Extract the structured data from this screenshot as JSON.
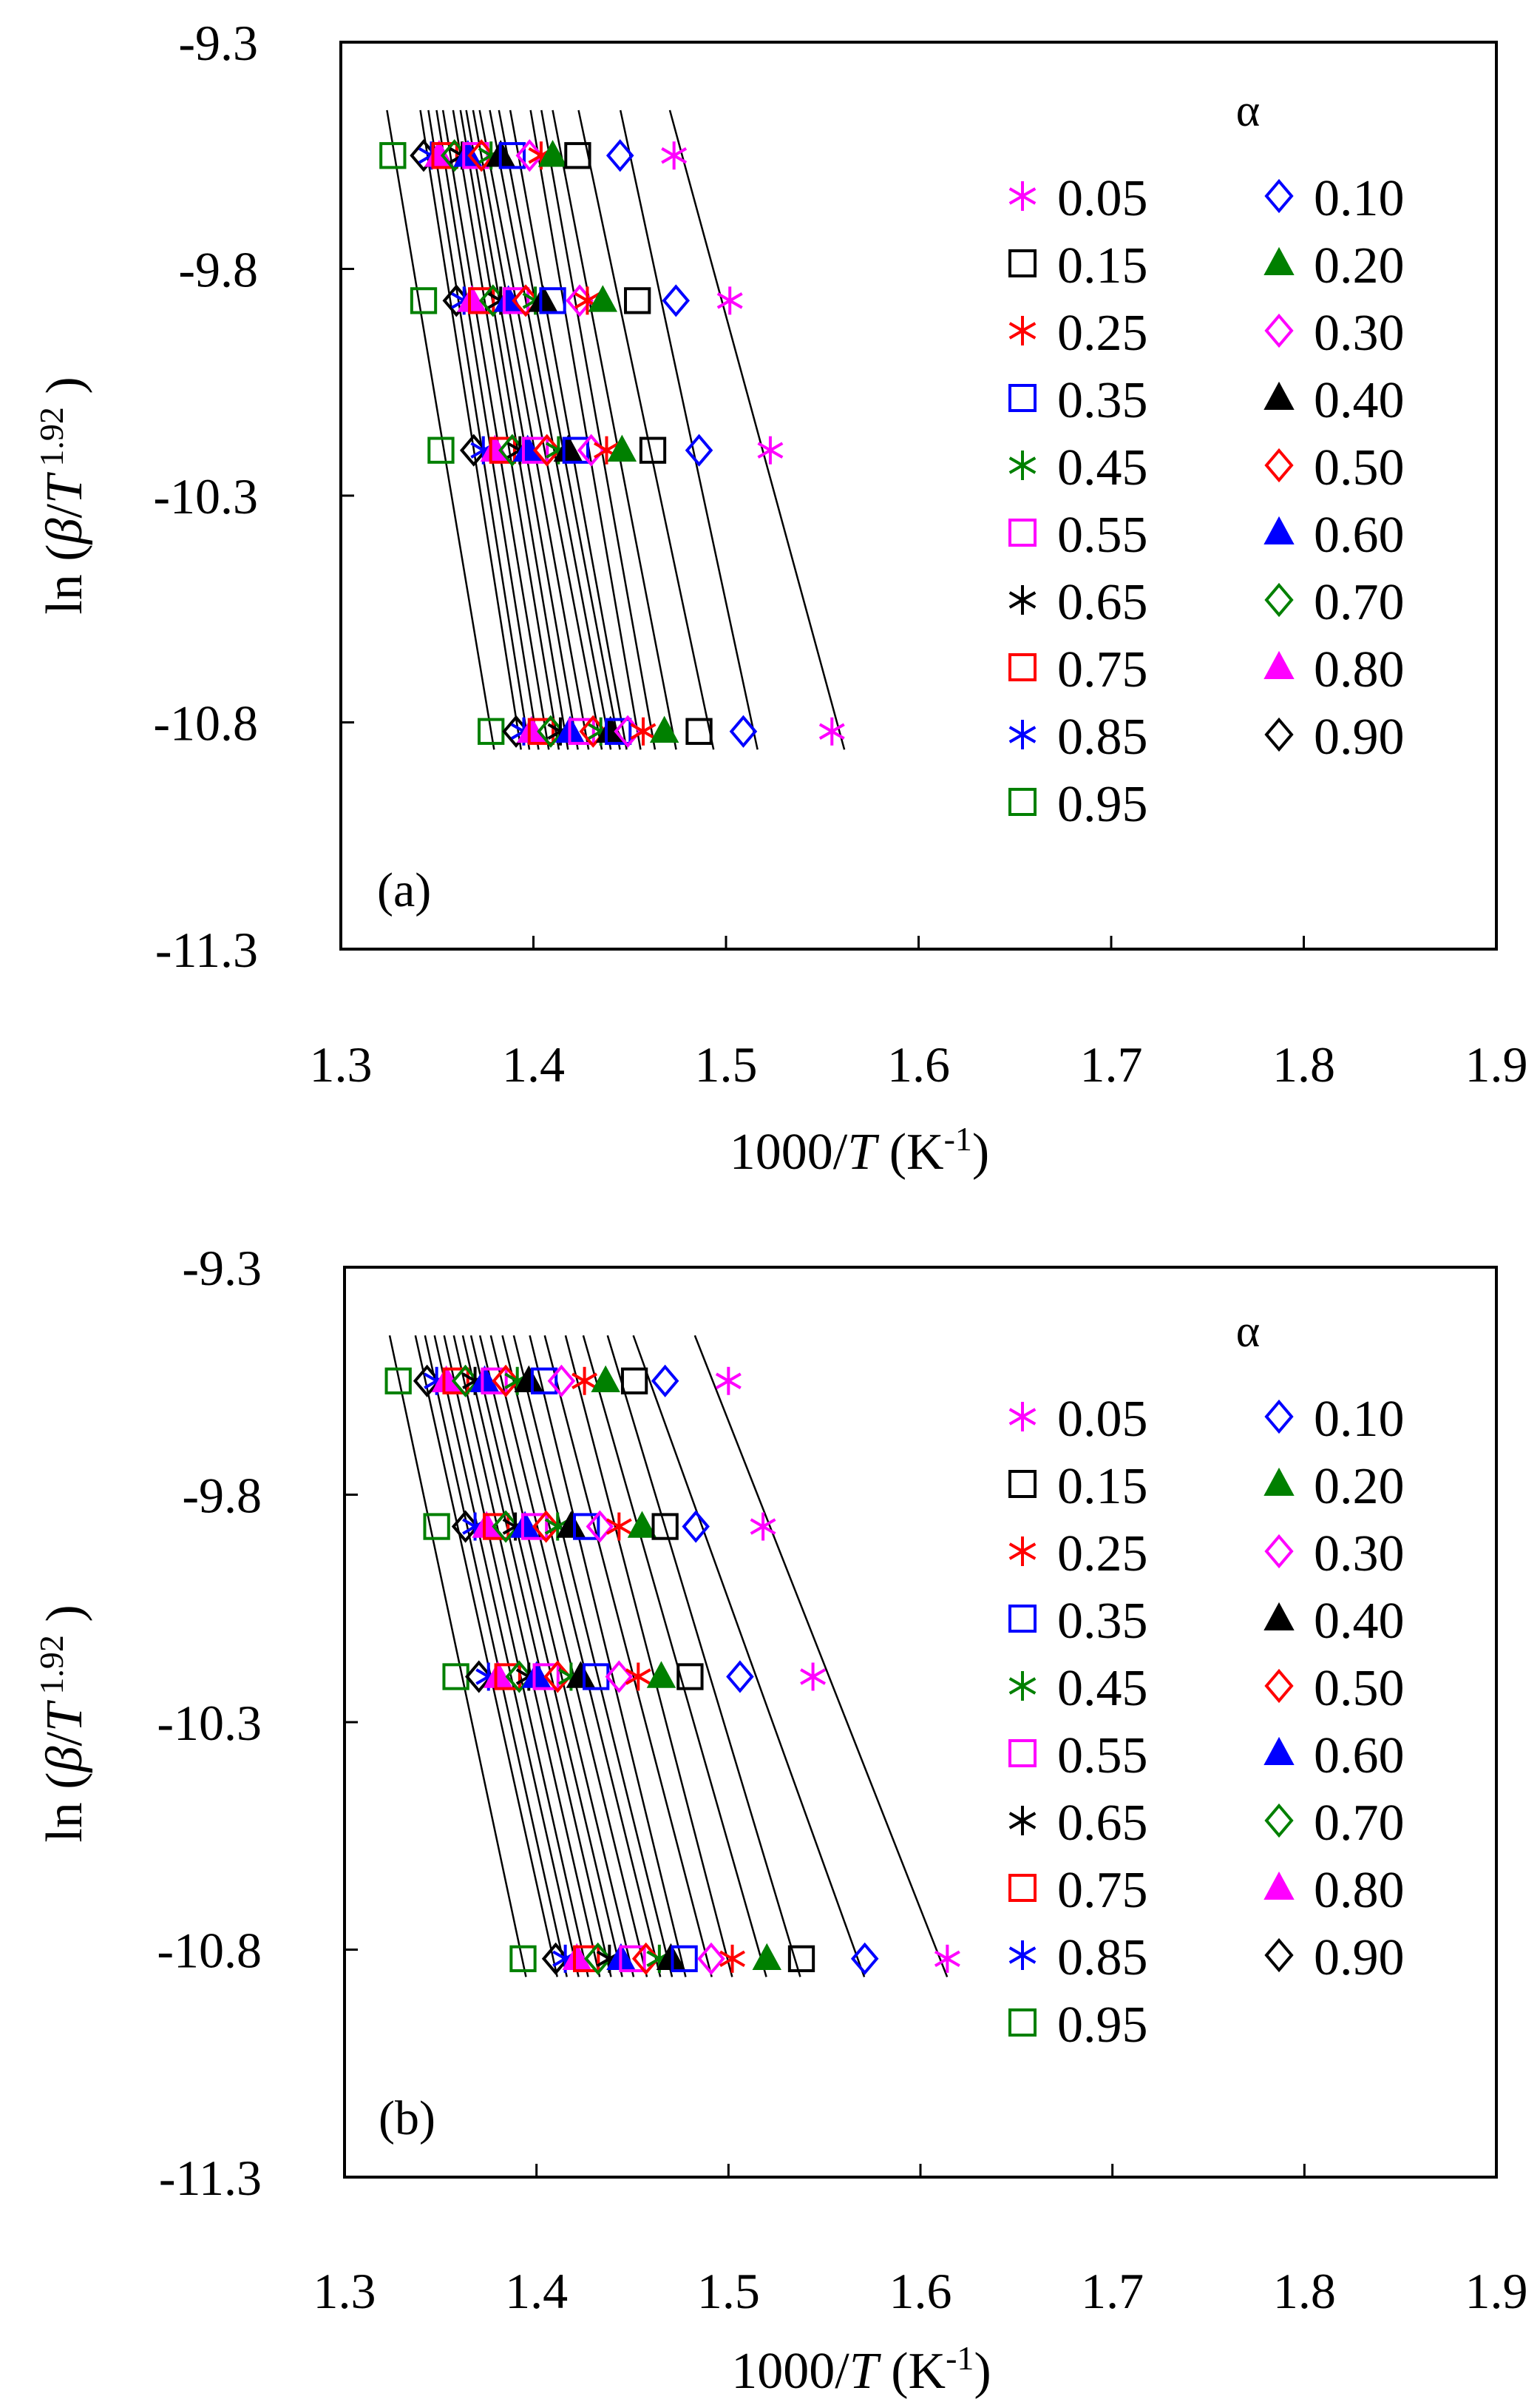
{
  "chart_data": [
    {
      "type": "line",
      "panel_label": "(a)",
      "xlabel": "1000/T (K-1)",
      "ylabel": "ln (β/T 1.92)",
      "xlim": [
        1.3,
        1.9
      ],
      "ylim": [
        -11.3,
        -9.3
      ],
      "xticks": [
        "1.3",
        "1.4",
        "1.5",
        "1.6",
        "1.7",
        "1.8",
        "1.9"
      ],
      "yticks": [
        "-9.3",
        "-9.8",
        "-10.3",
        "-10.8",
        "-11.3"
      ],
      "y_levels": [
        -9.55,
        -9.87,
        -10.2,
        -10.82
      ],
      "legend_title": "α",
      "grid": false,
      "series": [
        {
          "name": "0.05",
          "x": [
            1.473,
            1.502,
            1.523,
            1.555
          ]
        },
        {
          "name": "0.10",
          "x": [
            1.445,
            1.474,
            1.486,
            1.509
          ]
        },
        {
          "name": "0.15",
          "x": [
            1.423,
            1.454,
            1.462,
            1.486
          ]
        },
        {
          "name": "0.20",
          "x": [
            1.41,
            1.436,
            1.446,
            1.468
          ]
        },
        {
          "name": "0.25",
          "x": [
            1.404,
            1.428,
            1.438,
            1.457
          ]
        },
        {
          "name": "0.30",
          "x": [
            1.398,
            1.424,
            1.43,
            1.449
          ]
        },
        {
          "name": "0.35",
          "x": [
            1.389,
            1.41,
            1.422,
            1.444
          ]
        },
        {
          "name": "0.40",
          "x": [
            1.383,
            1.405,
            1.418,
            1.44
          ]
        },
        {
          "name": "0.45",
          "x": [
            1.378,
            1.401,
            1.413,
            1.435
          ]
        },
        {
          "name": "0.50",
          "x": [
            1.373,
            1.396,
            1.407,
            1.431
          ]
        },
        {
          "name": "0.55",
          "x": [
            1.37,
            1.391,
            1.401,
            1.425
          ]
        },
        {
          "name": "0.60",
          "x": [
            1.366,
            1.387,
            1.397,
            1.419
          ]
        },
        {
          "name": "0.65",
          "x": [
            1.363,
            1.383,
            1.393,
            1.414
          ]
        },
        {
          "name": "0.70",
          "x": [
            1.359,
            1.379,
            1.389,
            1.409
          ]
        },
        {
          "name": "0.75",
          "x": [
            1.354,
            1.373,
            1.384,
            1.404
          ]
        },
        {
          "name": "0.80",
          "x": [
            1.351,
            1.368,
            1.38,
            1.399
          ]
        },
        {
          "name": "0.85",
          "x": [
            1.347,
            1.364,
            1.374,
            1.395
          ]
        },
        {
          "name": "0.90",
          "x": [
            1.343,
            1.36,
            1.369,
            1.391
          ]
        },
        {
          "name": "0.95",
          "x": [
            1.327,
            1.343,
            1.352,
            1.378
          ]
        }
      ]
    },
    {
      "type": "line",
      "panel_label": "(b)",
      "xlabel": "1000/T (K-1)",
      "ylabel": "ln (β/T 1.92)",
      "xlim": [
        1.3,
        1.9
      ],
      "ylim": [
        -11.3,
        -9.3
      ],
      "xticks": [
        "1.3",
        "1.4",
        "1.5",
        "1.6",
        "1.7",
        "1.8",
        "1.9"
      ],
      "yticks": [
        "-9.3",
        "-9.8",
        "-10.3",
        "-10.8",
        "-11.3"
      ],
      "y_levels": [
        -9.55,
        -9.87,
        -10.2,
        -10.82
      ],
      "legend_title": "α",
      "grid": false,
      "series": [
        {
          "name": "0.05",
          "x": [
            1.5,
            1.518,
            1.544,
            1.614
          ]
        },
        {
          "name": "0.10",
          "x": [
            1.467,
            1.483,
            1.506,
            1.571
          ]
        },
        {
          "name": "0.15",
          "x": [
            1.451,
            1.467,
            1.48,
            1.538
          ]
        },
        {
          "name": "0.20",
          "x": [
            1.436,
            1.455,
            1.465,
            1.52
          ]
        },
        {
          "name": "0.25",
          "x": [
            1.425,
            1.443,
            1.453,
            1.502
          ]
        },
        {
          "name": "0.30",
          "x": [
            1.413,
            1.433,
            1.443,
            1.491
          ]
        },
        {
          "name": "0.35",
          "x": [
            1.404,
            1.426,
            1.431,
            1.477
          ]
        },
        {
          "name": "0.40",
          "x": [
            1.396,
            1.418,
            1.423,
            1.47
          ]
        },
        {
          "name": "0.45",
          "x": [
            1.39,
            1.411,
            1.418,
            1.464
          ]
        },
        {
          "name": "0.50",
          "x": [
            1.384,
            1.405,
            1.411,
            1.457
          ]
        },
        {
          "name": "0.55",
          "x": [
            1.378,
            1.399,
            1.405,
            1.45
          ]
        },
        {
          "name": "0.60",
          "x": [
            1.373,
            1.394,
            1.4,
            1.444
          ]
        },
        {
          "name": "0.65",
          "x": [
            1.368,
            1.389,
            1.396,
            1.438
          ]
        },
        {
          "name": "0.70",
          "x": [
            1.363,
            1.384,
            1.391,
            1.432
          ]
        },
        {
          "name": "0.75",
          "x": [
            1.358,
            1.379,
            1.385,
            1.426
          ]
        },
        {
          "name": "0.80",
          "x": [
            1.353,
            1.374,
            1.38,
            1.421
          ]
        },
        {
          "name": "0.85",
          "x": [
            1.348,
            1.368,
            1.375,
            1.415
          ]
        },
        {
          "name": "0.90",
          "x": [
            1.343,
            1.363,
            1.37,
            1.41
          ]
        },
        {
          "name": "0.95",
          "x": [
            1.328,
            1.348,
            1.358,
            1.393
          ]
        }
      ]
    }
  ],
  "styles": [
    {
      "name": "0.05",
      "marker": "asterisk",
      "color": "#ff00ff"
    },
    {
      "name": "0.10",
      "marker": "diamond-open",
      "color": "#0000ff"
    },
    {
      "name": "0.15",
      "marker": "square-open",
      "color": "#000000"
    },
    {
      "name": "0.20",
      "marker": "triangle-filled",
      "color": "#008000"
    },
    {
      "name": "0.25",
      "marker": "asterisk",
      "color": "#ff0000"
    },
    {
      "name": "0.30",
      "marker": "diamond-open",
      "color": "#ff00ff"
    },
    {
      "name": "0.35",
      "marker": "square-open",
      "color": "#0000ff"
    },
    {
      "name": "0.40",
      "marker": "triangle-filled",
      "color": "#000000"
    },
    {
      "name": "0.45",
      "marker": "asterisk",
      "color": "#008000"
    },
    {
      "name": "0.50",
      "marker": "diamond-open",
      "color": "#ff0000"
    },
    {
      "name": "0.55",
      "marker": "square-open",
      "color": "#ff00ff"
    },
    {
      "name": "0.60",
      "marker": "triangle-filled",
      "color": "#0000ff"
    },
    {
      "name": "0.65",
      "marker": "asterisk",
      "color": "#000000"
    },
    {
      "name": "0.70",
      "marker": "diamond-open",
      "color": "#008000"
    },
    {
      "name": "0.75",
      "marker": "square-open",
      "color": "#ff0000"
    },
    {
      "name": "0.80",
      "marker": "triangle-filled",
      "color": "#ff00ff"
    },
    {
      "name": "0.85",
      "marker": "asterisk",
      "color": "#0000ff"
    },
    {
      "name": "0.90",
      "marker": "diamond-open",
      "color": "#000000"
    },
    {
      "name": "0.95",
      "marker": "square-open",
      "color": "#008000"
    }
  ]
}
